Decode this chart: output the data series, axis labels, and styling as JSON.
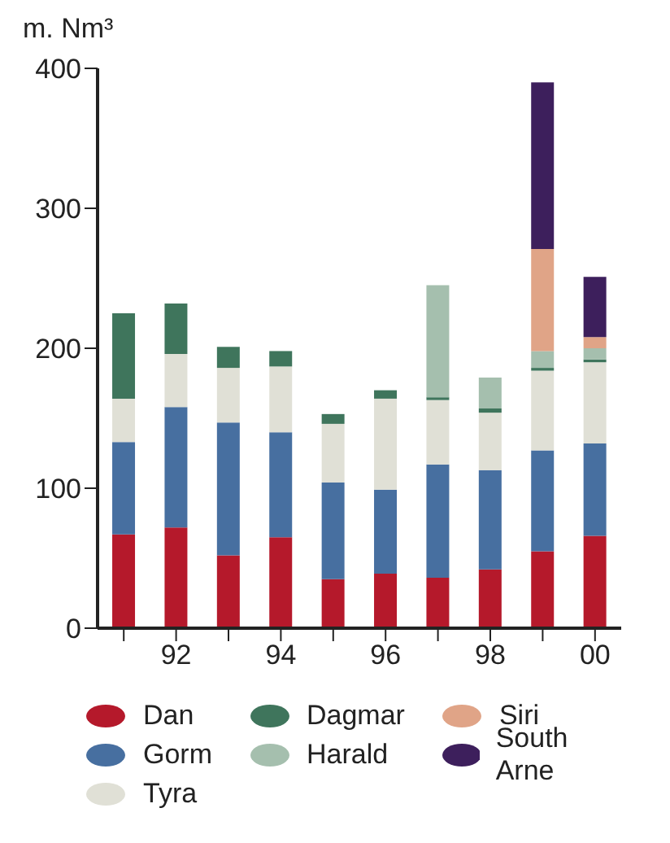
{
  "chart_data": {
    "type": "bar",
    "stacked": true,
    "ylabel": "m. Nm³",
    "categories": [
      null,
      "92",
      null,
      "94",
      null,
      "96",
      null,
      "98",
      null,
      "00"
    ],
    "ylim": [
      0,
      400
    ],
    "yticks": [
      0,
      100,
      200,
      300,
      400
    ],
    "legend": "bottom",
    "series": [
      {
        "name": "Dan",
        "color": "#b5192b",
        "values": [
          67,
          72,
          52,
          65,
          35,
          39,
          36,
          42,
          55,
          66
        ]
      },
      {
        "name": "Gorm",
        "color": "#476fa0",
        "values": [
          66,
          86,
          95,
          75,
          69,
          60,
          81,
          71,
          72,
          66
        ]
      },
      {
        "name": "Tyra",
        "color": "#e0e0d6",
        "values": [
          31,
          38,
          39,
          47,
          42,
          65,
          46,
          41,
          57,
          58
        ]
      },
      {
        "name": "Dagmar",
        "color": "#3f755c",
        "values": [
          61,
          36,
          15,
          11,
          7,
          6,
          2,
          3,
          2,
          2
        ]
      },
      {
        "name": "Harald",
        "color": "#a5bfae",
        "values": [
          null,
          null,
          null,
          null,
          null,
          null,
          80,
          22,
          12,
          8
        ]
      },
      {
        "name": "Siri",
        "color": "#e0a487",
        "values": [
          null,
          null,
          null,
          null,
          null,
          null,
          null,
          null,
          73,
          8
        ]
      },
      {
        "name": "South Arne",
        "color": "#3d1f5c",
        "values": [
          null,
          null,
          null,
          null,
          null,
          null,
          null,
          null,
          119,
          43
        ]
      }
    ]
  }
}
